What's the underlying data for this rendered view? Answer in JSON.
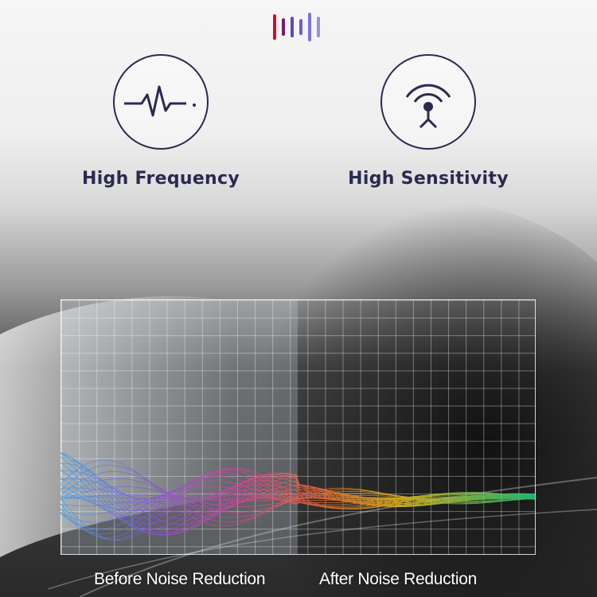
{
  "logo": {
    "bar_colors": [
      "#c8102e",
      "#7a1a6e",
      "#5a4bb8",
      "#6b5fc8",
      "#7d72d6",
      "#9a90e0"
    ]
  },
  "features": [
    {
      "icon": "heartbeat-pulse-icon",
      "label": "High Frequency"
    },
    {
      "icon": "antenna-signal-icon",
      "label": "High Sensitivity"
    }
  ],
  "comparison": {
    "before_label": "Before Noise Reduction",
    "after_label": "After Noise Reduction"
  },
  "colors": {
    "text_dark": "#2a2a50"
  }
}
